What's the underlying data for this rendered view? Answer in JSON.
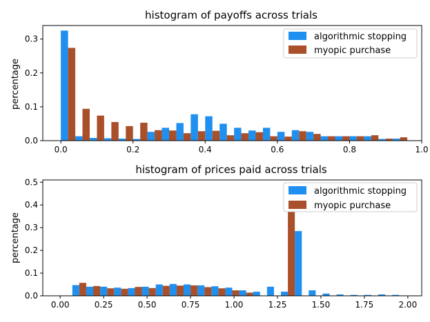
{
  "chart_data": [
    {
      "type": "bar",
      "title": "histogram of payoffs across trials",
      "xlabel": "",
      "ylabel": "percentage",
      "xlim": [
        -0.05,
        1.0
      ],
      "ylim": [
        0,
        0.34
      ],
      "xticks": [
        0.0,
        0.2,
        0.4,
        0.6,
        0.8,
        1.0
      ],
      "xtick_labels": [
        "0.0",
        "0.2",
        "0.4",
        "0.6",
        "0.8",
        "1.0"
      ],
      "yticks": [
        0.0,
        0.1,
        0.2,
        0.3
      ],
      "ytick_labels": [
        "0.0",
        "0.1",
        "0.2",
        "0.3"
      ],
      "legend_position": "top-right",
      "bin_starts": [
        0.0,
        0.04,
        0.08,
        0.12,
        0.16,
        0.2,
        0.24,
        0.28,
        0.32,
        0.36,
        0.4,
        0.44,
        0.48,
        0.52,
        0.56,
        0.6,
        0.64,
        0.68,
        0.72,
        0.76,
        0.8,
        0.84,
        0.88,
        0.92
      ],
      "bin_width": 0.04,
      "series": [
        {
          "name": "algorithmic stopping",
          "color": "#1f8ff0",
          "values": [
            0.325,
            0.013,
            0.008,
            0.007,
            0.006,
            0.005,
            0.026,
            0.038,
            0.052,
            0.078,
            0.072,
            0.05,
            0.038,
            0.03,
            0.038,
            0.026,
            0.031,
            0.026,
            0.013,
            0.013,
            0.013,
            0.013,
            0.005,
            0.006
          ]
        },
        {
          "name": "myopic purchase",
          "color": "#a9502a",
          "values": [
            0.274,
            0.094,
            0.074,
            0.055,
            0.043,
            0.053,
            0.031,
            0.03,
            0.022,
            0.028,
            0.029,
            0.016,
            0.022,
            0.025,
            0.013,
            0.012,
            0.028,
            0.02,
            0.013,
            0.013,
            0.013,
            0.016,
            0.006,
            0.01
          ]
        }
      ]
    },
    {
      "type": "bar",
      "title": "histogram of prices paid across trials",
      "xlabel": "",
      "ylabel": "percentage",
      "xlim": [
        -0.1,
        2.08
      ],
      "ylim": [
        0,
        0.51
      ],
      "xticks": [
        0.0,
        0.25,
        0.5,
        0.75,
        1.0,
        1.25,
        1.5,
        1.75,
        2.0
      ],
      "xtick_labels": [
        "0.00",
        "0.25",
        "0.50",
        "0.75",
        "1.00",
        "1.25",
        "1.50",
        "1.75",
        "2.00"
      ],
      "yticks": [
        0.0,
        0.1,
        0.2,
        0.3,
        0.4,
        0.5
      ],
      "ytick_labels": [
        "0.0",
        "0.1",
        "0.2",
        "0.3",
        "0.4",
        "0.5"
      ],
      "legend_position": "top-right",
      "bin_starts": [
        0.07,
        0.15,
        0.23,
        0.31,
        0.39,
        0.47,
        0.55,
        0.63,
        0.71,
        0.79,
        0.87,
        0.95,
        1.03,
        1.11,
        1.19,
        1.27,
        1.35,
        1.43,
        1.51,
        1.59,
        1.67,
        1.75,
        1.83,
        1.91
      ],
      "bin_width": 0.08,
      "series": [
        {
          "name": "algorithmic stopping",
          "color": "#1f8ff0",
          "values": [
            0.047,
            0.04,
            0.04,
            0.036,
            0.034,
            0.04,
            0.05,
            0.052,
            0.05,
            0.046,
            0.042,
            0.036,
            0.024,
            0.018,
            0.04,
            0.018,
            0.285,
            0.024,
            0.01,
            0.006,
            0.004,
            0.004,
            0.006,
            0.004
          ]
        },
        {
          "name": "myopic purchase",
          "color": "#a9502a",
          "values": [
            0.057,
            0.043,
            0.033,
            0.031,
            0.039,
            0.034,
            0.044,
            0.045,
            0.046,
            0.038,
            0.033,
            0.024,
            0.014,
            0.0,
            0.0,
            0.49,
            0.0,
            0.0,
            0.0,
            0.0,
            0.0,
            0.0,
            0.0,
            0.0
          ]
        }
      ]
    }
  ]
}
